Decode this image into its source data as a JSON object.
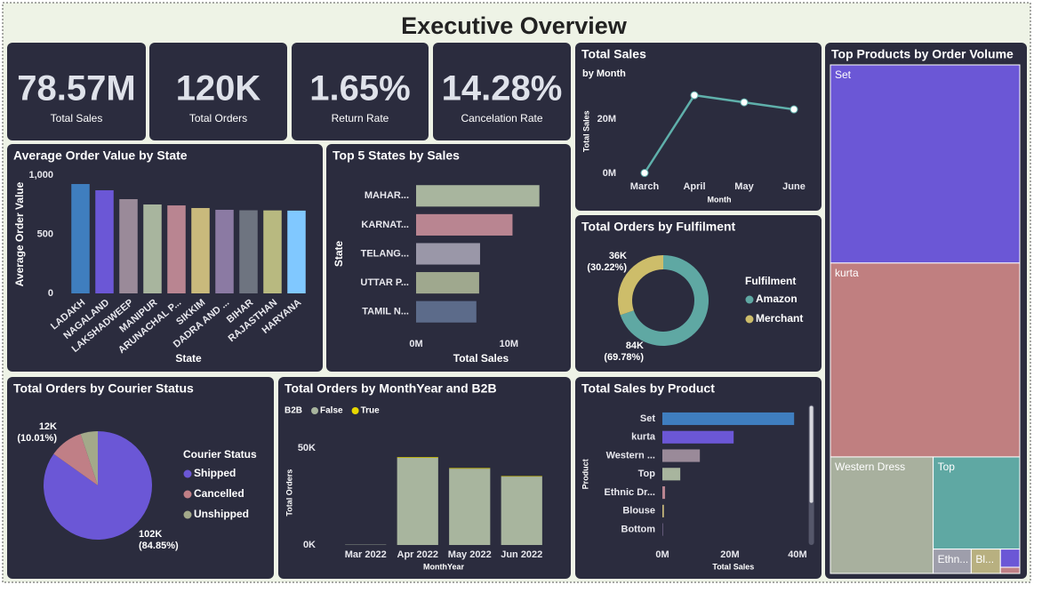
{
  "header": {
    "title": "Executive Overview"
  },
  "kpis": [
    {
      "value": "78.57M",
      "label": "Total Sales"
    },
    {
      "value": "120K",
      "label": "Total Orders"
    },
    {
      "value": "1.65%",
      "label": "Return Rate"
    },
    {
      "value": "14.28%",
      "label": "Cancelation Rate"
    }
  ],
  "chart_data": [
    {
      "type": "bar",
      "title": "Average Order Value by State",
      "x_label": "State",
      "y_label": "Average Order Value",
      "categories": [
        "LADAKH",
        "NAGALAND",
        "LAKSHADWEEP",
        "MANIPUR",
        "ARUNACHAL P...",
        "SIKKIM",
        "DADRA AND ...",
        "BIHAR",
        "RAJASTHAN",
        "HARYANA"
      ],
      "values": [
        925,
        872,
        797,
        752,
        744,
        722,
        707,
        703,
        702,
        700
      ],
      "colors": [
        "#3f7ebf",
        "#6b57d6",
        "#9a8a99",
        "#a8b59e",
        "#b98591",
        "#c9b97c",
        "#8b7aa3",
        "#6e7480",
        "#b8b980",
        "#80c8ff"
      ],
      "ylim": [
        0,
        1000
      ],
      "yticks": [
        0,
        500,
        {
          "value": 1000,
          "label": "1,000"
        }
      ]
    },
    {
      "type": "barh",
      "title": "Top 5 States by Sales",
      "x_label": "Total Sales",
      "y_label": "State",
      "categories": [
        "MAHAR...",
        "KARNAT...",
        "TELANG...",
        "UTTAR P...",
        "TAMIL N..."
      ],
      "values": [
        13300000,
        10400000,
        6900000,
        6800000,
        6500000
      ],
      "colors": [
        "#a8b59e",
        "#b98591",
        "#9a97a8",
        "#9fa88e",
        "#5c6b8a"
      ],
      "xlim": [
        0,
        14000000
      ],
      "xticks": [
        {
          "value": 0,
          "label": "0M"
        },
        {
          "value": 10000000,
          "label": "10M"
        }
      ]
    },
    {
      "type": "line",
      "title": "Total Sales",
      "subtitle": "by Month",
      "x_label": "Month",
      "y_label": "Total Sales",
      "categories": [
        "March",
        "April",
        "May",
        "June"
      ],
      "values": [
        160000,
        28800000,
        26200000,
        23600000
      ],
      "color": "#5fb0ab",
      "ylim": [
        0,
        31000000
      ],
      "yticks": [
        {
          "value": 0,
          "label": "0M"
        },
        {
          "value": 20000000,
          "label": "20M"
        }
      ]
    },
    {
      "type": "donut",
      "title": "Total Orders by Fulfilment",
      "legend_title": "Fulfilment",
      "categories": [
        "Amazon",
        "Merchant"
      ],
      "values": [
        69.78,
        30.22
      ],
      "value_labels": [
        [
          "84K",
          "(69.78%)"
        ],
        [
          "36K",
          "(30.22%)"
        ]
      ],
      "colors": [
        "#5fa8a3",
        "#cdbd6a"
      ]
    },
    {
      "type": "pie",
      "title": "Total Orders by Courier Status",
      "legend_title": "Courier Status",
      "categories": [
        "Shipped",
        "Cancelled",
        "Unshipped"
      ],
      "values": [
        84.85,
        10.01,
        5.14
      ],
      "value_labels": [
        [
          "102K",
          "(84.85%)"
        ],
        [
          "12K",
          "(10.01%)"
        ],
        null
      ],
      "colors": [
        "#6b57d6",
        "#c07f86",
        "#a3a98a"
      ]
    },
    {
      "type": "bar",
      "stacked": true,
      "title": "Total Orders by MonthYear and B2B",
      "legend_title": "B2B",
      "x_label": "MonthYear",
      "y_label": "Total Orders",
      "categories": [
        "Mar 2022",
        "Apr 2022",
        "May 2022",
        "Jun 2022"
      ],
      "series": [
        {
          "name": "False",
          "color": "#a8b59e",
          "values": [
            170,
            45000,
            39400,
            35300
          ]
        },
        {
          "name": "True",
          "color": "#e8d800",
          "values": [
            0,
            340,
            300,
            250
          ]
        }
      ],
      "ylim": [
        0,
        54000
      ],
      "yticks": [
        {
          "value": 0,
          "label": "0K"
        },
        {
          "value": 50000,
          "label": "50K"
        }
      ]
    },
    {
      "type": "barh",
      "title": "Total Sales by Product",
      "x_label": "Total Sales",
      "y_label": "Product",
      "categories": [
        "Set",
        "kurta",
        "Western ...",
        "Top",
        "Ethnic Dr...",
        "Blouse",
        "Bottom"
      ],
      "values": [
        39000000,
        21100000,
        11100000,
        5300000,
        800000,
        450000,
        150000
      ],
      "colors": [
        "#3f7ebf",
        "#6b57d6",
        "#9a8a99",
        "#a8b59e",
        "#b98591",
        "#c9b97c",
        "#8b7aa3"
      ],
      "xlim": [
        0,
        42000000
      ],
      "xticks": [
        {
          "value": 0,
          "label": "0M"
        },
        {
          "value": 20000000,
          "label": "20M"
        },
        {
          "value": 40000000,
          "label": "40M"
        }
      ]
    },
    {
      "type": "treemap",
      "title": "Top Products by Order Volume",
      "categories": [
        "Set",
        "kurta",
        "Western Dress",
        "Top",
        "Ethn...",
        "Bl...",
        null,
        null
      ],
      "values": [
        47000,
        46000,
        15000,
        10000,
        1160,
        890,
        440,
        150
      ],
      "colors": [
        "#6b57d6",
        "#c07f80",
        "#a8b09e",
        "#5fa8a3",
        "#9e9eab",
        "#b8b080",
        "#6b57d6",
        "#c07f86"
      ]
    }
  ]
}
